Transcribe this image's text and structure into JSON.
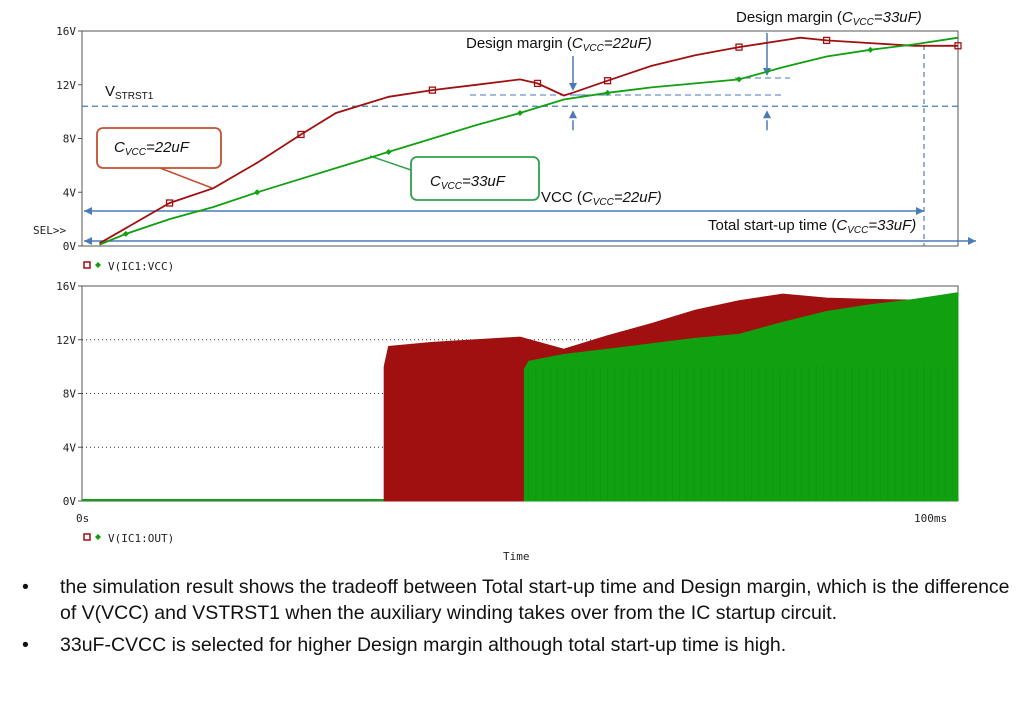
{
  "colors": {
    "red": "#a01010",
    "green": "#10a010",
    "dashed": "#4a7ab8"
  },
  "chart_data": [
    {
      "type": "line",
      "id": "top",
      "x_unit": "ms",
      "xlim": [
        0,
        100
      ],
      "ylim": [
        0,
        16
      ],
      "y_ticks": [
        "0V",
        "4V",
        "8V",
        "12V",
        "16V"
      ],
      "sel_label": "SEL>>",
      "legend": "V(IC1:VCC)",
      "grid": false,
      "series": [
        {
          "name": "CVCC=22uF",
          "color": "#a01010",
          "x": [
            2,
            10,
            15,
            20,
            25,
            29,
            35,
            40,
            45,
            50,
            52,
            55,
            56,
            60,
            65,
            70,
            75,
            80,
            82,
            85,
            90,
            95,
            100
          ],
          "y": [
            0.2,
            3.2,
            4.3,
            6.2,
            8.3,
            9.9,
            11.1,
            11.6,
            12.0,
            12.4,
            12.1,
            11.2,
            11.4,
            12.3,
            13.4,
            14.2,
            14.8,
            15.3,
            15.5,
            15.3,
            15.1,
            14.9,
            14.9
          ]
        },
        {
          "name": "CVCC=33uF",
          "color": "#10a010",
          "x": [
            2,
            5,
            10,
            15,
            20,
            25,
            30,
            35,
            40,
            45,
            50,
            53,
            55,
            60,
            65,
            70,
            75,
            80,
            85,
            90,
            95,
            100
          ],
          "y": [
            0.1,
            0.9,
            2.0,
            2.9,
            4.0,
            5.0,
            6.0,
            7.0,
            8.0,
            9.0,
            9.9,
            10.5,
            10.9,
            11.4,
            11.8,
            12.1,
            12.4,
            13.3,
            14.1,
            14.6,
            15.0,
            15.5
          ]
        }
      ],
      "vstrst1": 10.4,
      "annotations": {
        "vstrst1_label": "V",
        "vstrst1_sub": "STRST1",
        "margin22": "Design margin (",
        "margin33": "Design margin (",
        "c22_text": "C",
        "c22_sub": "VCC",
        "c22_val": "=22uF",
        "c33_val": "=33uF",
        "cvcc_paren_close": ")",
        "tstart22_pre": "VCC (",
        "total33": "Total start-up time (",
        "uF22": "=22uF)",
        "uF33": "=33uF)"
      }
    },
    {
      "type": "area",
      "id": "bottom",
      "x_unit": "ms",
      "xlim": [
        0,
        100
      ],
      "ylim": [
        0,
        16
      ],
      "y_ticks": [
        "0V",
        "4V",
        "8V",
        "12V",
        "16V"
      ],
      "x_ticks": [
        "0s",
        "100ms"
      ],
      "xlabel": "Time",
      "legend": "V(IC1:OUT)",
      "grid": "dotted",
      "series": [
        {
          "name": "CVCC=22uF",
          "color": "#a01010",
          "x": [
            34.5,
            35,
            40,
            45,
            50,
            55,
            60,
            65,
            70,
            75,
            80,
            85,
            90,
            100
          ],
          "y": [
            10.0,
            11.5,
            11.8,
            12.0,
            12.2,
            11.3,
            12.3,
            13.2,
            14.2,
            14.9,
            15.4,
            15.1,
            15.0,
            14.9
          ]
        },
        {
          "name": "CVCC=33uF",
          "color": "#10a010",
          "x": [
            50.5,
            51,
            55,
            60,
            65,
            70,
            75,
            80,
            85,
            90,
            95,
            100
          ],
          "y": [
            9.8,
            10.4,
            10.9,
            11.3,
            11.7,
            12.1,
            12.4,
            13.3,
            14.1,
            14.6,
            15.0,
            15.5
          ]
        }
      ]
    }
  ],
  "bullets": [
    "the simulation result shows the tradeoff between Total start-up time and Design margin, which is the difference of V(VCC) and VSTRST1 when the auxiliary winding takes over from the IC startup circuit.",
    "33uF-CVCC is selected for higher Design margin although total start-up time is high."
  ]
}
